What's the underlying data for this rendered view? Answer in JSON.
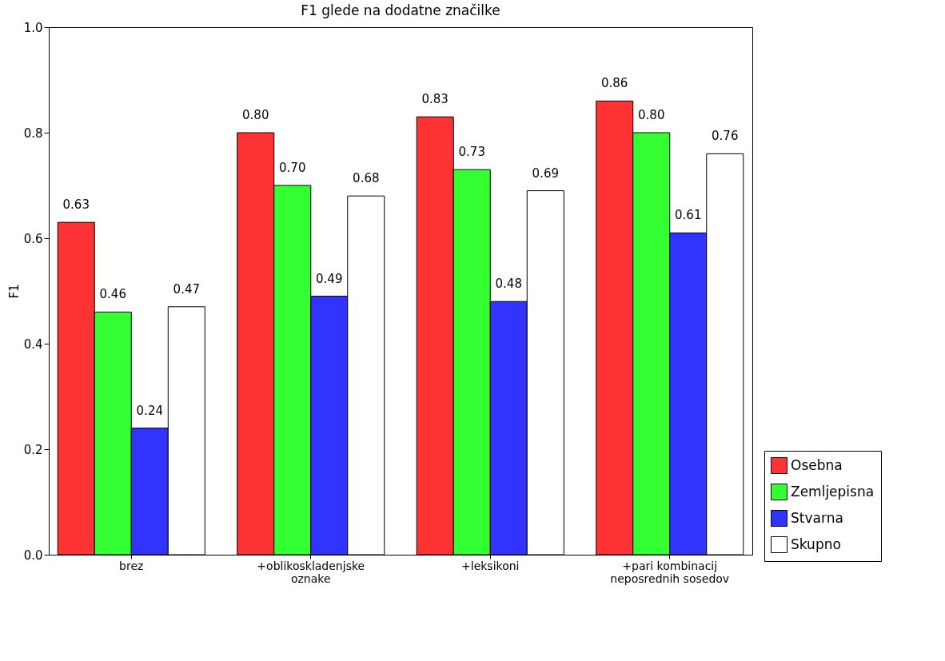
{
  "chart_data": {
    "type": "bar",
    "title": "F1 glede na dodatne značilke",
    "ylabel": "F1",
    "categories": [
      "brez",
      "+oblikoskladenjske oznake",
      "+leksikoni",
      "+pari kombinacij neposrednih sosedov"
    ],
    "series": [
      {
        "name": "Osebna",
        "color": "#ff3333",
        "values": [
          0.63,
          0.8,
          0.83,
          0.86
        ],
        "value_labels": [
          "0.63",
          "0.80",
          "0.83",
          "0.86"
        ]
      },
      {
        "name": "Zemljepisna",
        "color": "#33ff33",
        "values": [
          0.46,
          0.7,
          0.73,
          0.8
        ],
        "value_labels": [
          "0.46",
          "0.70",
          "0.73",
          "0.80"
        ]
      },
      {
        "name": "Stvarna",
        "color": "#3333ff",
        "values": [
          0.24,
          0.49,
          0.48,
          0.61
        ],
        "value_labels": [
          "0.24",
          "0.49",
          "0.48",
          "0.61"
        ]
      },
      {
        "name": "Skupno",
        "color": "#ffffff",
        "values": [
          0.47,
          0.68,
          0.69,
          0.76
        ],
        "value_labels": [
          "0.47",
          "0.68",
          "0.69",
          "0.76"
        ]
      }
    ],
    "ylim": [
      0,
      1
    ],
    "yticks": [
      {
        "value": 0,
        "label": "0.0"
      },
      {
        "value": 0.2,
        "label": "0.2"
      },
      {
        "value": 0.4,
        "label": "0.4"
      },
      {
        "value": 0.6,
        "label": "0.6"
      },
      {
        "value": 0.8,
        "label": "0.8"
      },
      {
        "value": 1,
        "label": "1.0"
      }
    ],
    "grid": false,
    "legend": "bottom right"
  }
}
